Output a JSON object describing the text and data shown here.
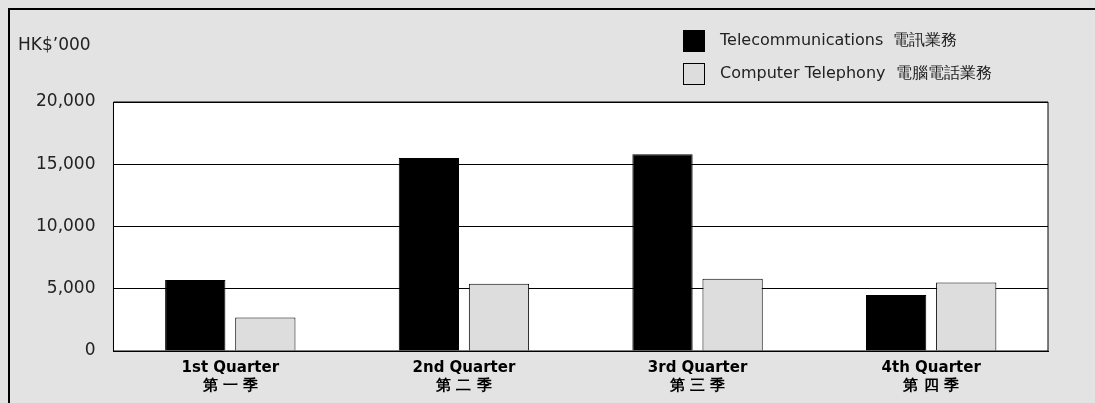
{
  "chart_data": {
    "type": "bar",
    "ylabel": "HK$’000",
    "categories": [
      "1st Quarter\n第 一 季",
      "2nd Quarter\n第 二 季",
      "3rd Quarter\n第 三 季",
      "4th Quarter\n第 四 季"
    ],
    "series": [
      {
        "name": "Telecommunications  電訊業務",
        "color": "#000000",
        "values": [
          5700,
          15500,
          15800,
          4500
        ]
      },
      {
        "name": "Computer Telephony  電腦電話業務",
        "color": "#dddddd",
        "values": [
          2700,
          5400,
          5800,
          5500
        ]
      }
    ],
    "ylim": [
      0,
      20000
    ],
    "yticks": [
      {
        "value": 0,
        "label": "0"
      },
      {
        "value": 5000,
        "label": "5,000"
      },
      {
        "value": 10000,
        "label": "10,000"
      },
      {
        "value": 15000,
        "label": "15,000"
      },
      {
        "value": 20000,
        "label": "20,000"
      }
    ],
    "grid": "y",
    "legend": "top right"
  }
}
